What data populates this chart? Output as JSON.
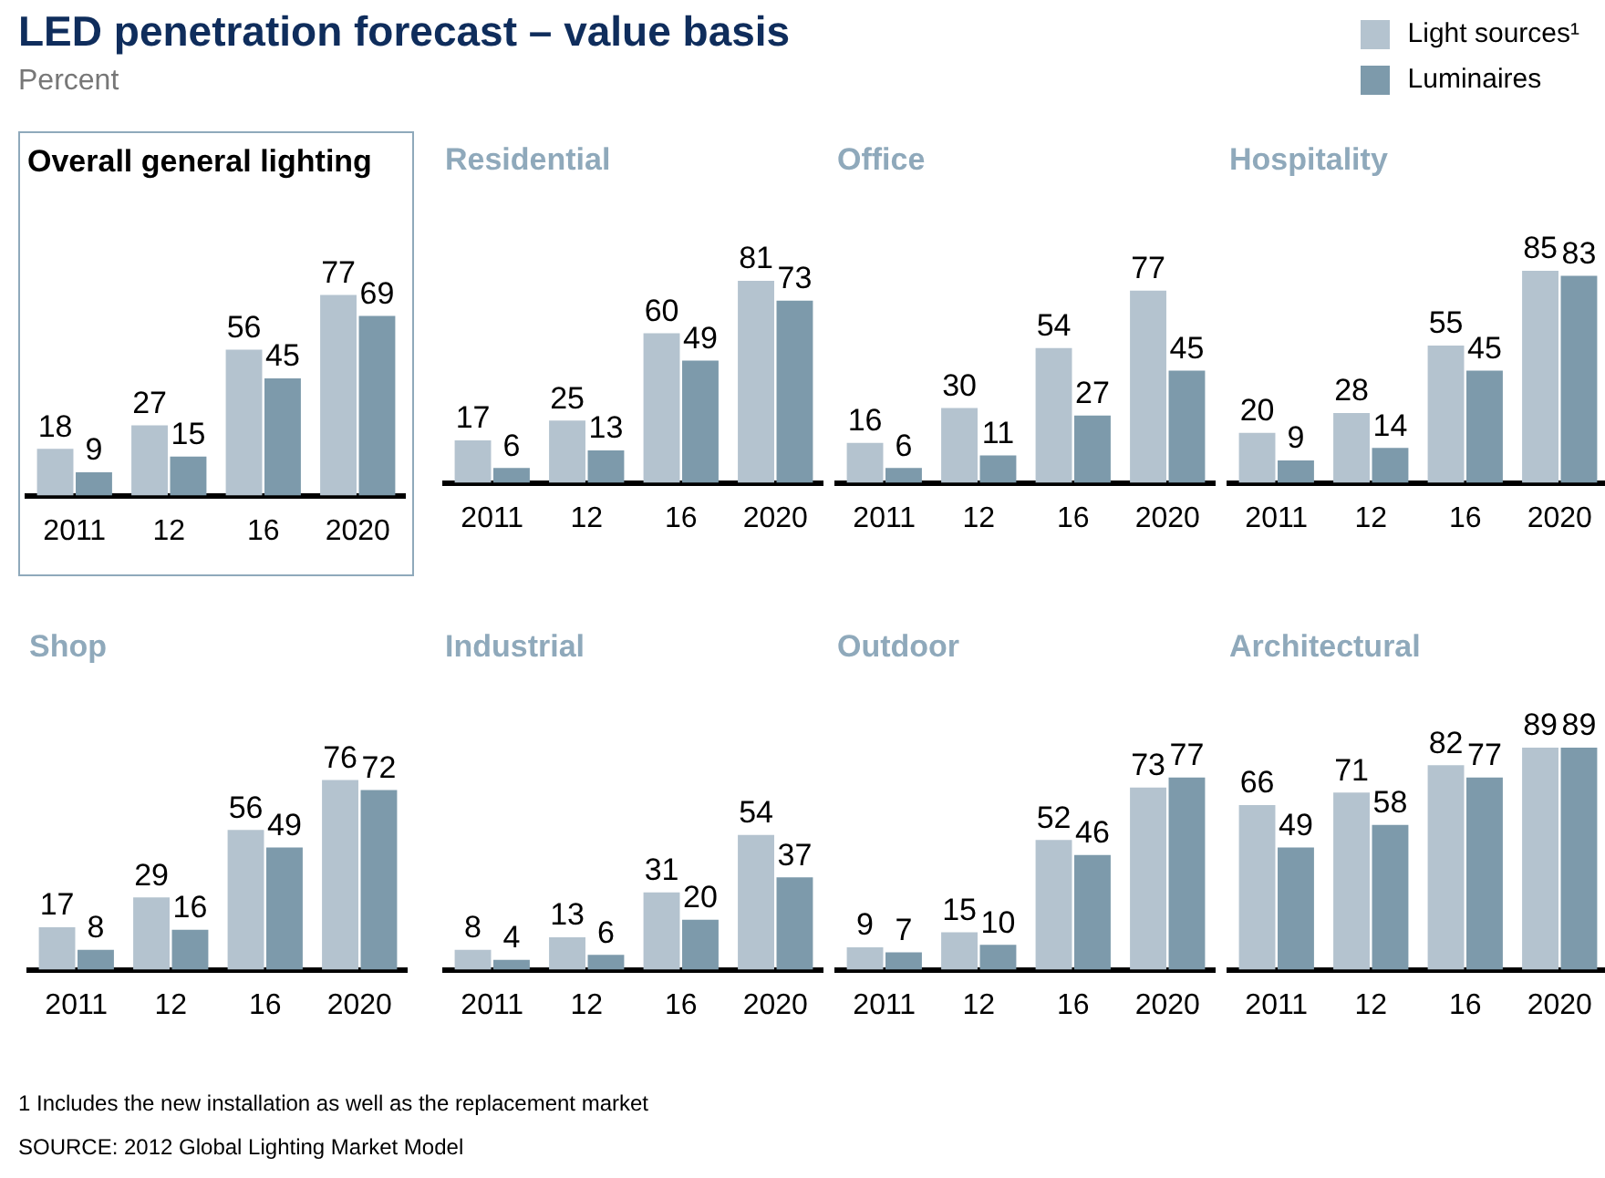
{
  "chart_data": [
    {
      "type": "other",
      "title": "LED penetration forecast – value basis",
      "subtitle": "Percent",
      "annotations": [
        "1 Includes the new installation as well as the replacement market",
        "SOURCE: 2012 Global Lighting Market Model"
      ]
    },
    {
      "type": "bar",
      "title": "Overall general lighting",
      "categories": [
        "2011",
        "12",
        "16",
        "2020"
      ],
      "tick_labels": "x",
      "data_labels": true,
      "legend": "top right",
      "series": [
        {
          "name": "Light sources¹",
          "color": "#b4c3cf",
          "values": [
            18,
            27,
            56,
            77
          ]
        },
        {
          "name": "Luminaires",
          "color": "#7d9aab",
          "values": [
            9,
            15,
            45,
            69
          ]
        }
      ]
    },
    {
      "type": "bar",
      "title": "Residential",
      "categories": [
        "2011",
        "12",
        "16",
        "2020"
      ],
      "tick_labels": "x",
      "data_labels": true,
      "series": [
        {
          "color": "#b4c3cf",
          "values": [
            17,
            25,
            60,
            81
          ]
        },
        {
          "color": "#7d9aab",
          "values": [
            6,
            13,
            49,
            73
          ]
        }
      ]
    },
    {
      "type": "bar",
      "title": "Office",
      "categories": [
        "2011",
        "12",
        "16",
        "2020"
      ],
      "tick_labels": "x",
      "data_labels": true,
      "series": [
        {
          "color": "#b4c3cf",
          "values": [
            16,
            30,
            54,
            77
          ]
        },
        {
          "color": "#7d9aab",
          "values": [
            6,
            11,
            27,
            45
          ]
        }
      ]
    },
    {
      "type": "bar",
      "title": "Hospitality",
      "categories": [
        "2011",
        "12",
        "16",
        "2020"
      ],
      "tick_labels": "x",
      "data_labels": true,
      "series": [
        {
          "color": "#b4c3cf",
          "values": [
            20,
            28,
            55,
            85
          ]
        },
        {
          "color": "#7d9aab",
          "values": [
            9,
            14,
            45,
            83
          ]
        }
      ]
    },
    {
      "type": "bar",
      "title": "Shop",
      "categories": [
        "2011",
        "12",
        "16",
        "2020"
      ],
      "tick_labels": "x",
      "data_labels": true,
      "series": [
        {
          "color": "#b4c3cf",
          "values": [
            17,
            29,
            56,
            76
          ]
        },
        {
          "color": "#7d9aab",
          "values": [
            8,
            16,
            49,
            72
          ]
        }
      ]
    },
    {
      "type": "bar",
      "title": "Industrial",
      "categories": [
        "2011",
        "12",
        "16",
        "2020"
      ],
      "tick_labels": "x",
      "data_labels": true,
      "series": [
        {
          "color": "#b4c3cf",
          "values": [
            8,
            13,
            31,
            54
          ]
        },
        {
          "color": "#7d9aab",
          "values": [
            4,
            6,
            20,
            37
          ]
        }
      ]
    },
    {
      "type": "bar",
      "title": "Outdoor",
      "categories": [
        "2011",
        "12",
        "16",
        "2020"
      ],
      "tick_labels": "x",
      "data_labels": true,
      "series": [
        {
          "color": "#b4c3cf",
          "values": [
            9,
            15,
            52,
            73
          ]
        },
        {
          "color": "#7d9aab",
          "values": [
            7,
            10,
            46,
            77
          ]
        }
      ]
    },
    {
      "type": "bar",
      "title": "Architectural",
      "categories": [
        "2011",
        "12",
        "16",
        "2020"
      ],
      "tick_labels": "x",
      "data_labels": true,
      "series": [
        {
          "color": "#b4c3cf",
          "values": [
            66,
            71,
            82,
            89
          ]
        },
        {
          "color": "#7d9aab",
          "values": [
            49,
            58,
            77,
            89
          ]
        }
      ]
    }
  ]
}
